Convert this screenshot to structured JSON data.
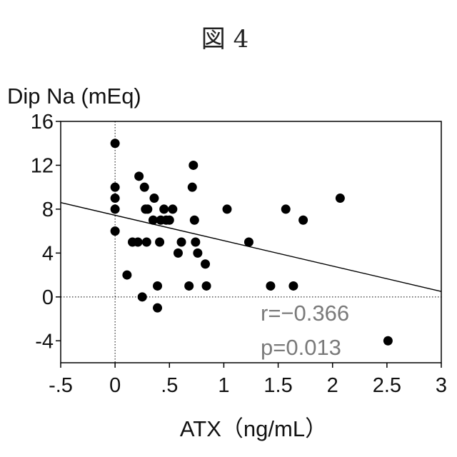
{
  "figure_label": "図 4",
  "chart_data": {
    "type": "scatter",
    "title": "",
    "ylabel": "Dip Na (mEq)",
    "xlabel": "ATX（ng/mL）",
    "xlim": [
      -0.5,
      3
    ],
    "ylim": [
      -6,
      16
    ],
    "x_ticks": [
      -0.5,
      0,
      0.5,
      1,
      1.5,
      2,
      2.5,
      3
    ],
    "x_tick_labels": [
      "-.5",
      "0",
      ".5",
      "1",
      "1.5",
      "2",
      "2.5",
      "3"
    ],
    "y_ticks": [
      -4,
      0,
      4,
      8,
      12,
      16
    ],
    "y_tick_labels": [
      "-4",
      "0",
      "4",
      "8",
      "12",
      "16"
    ],
    "reference_lines": {
      "x": 0,
      "y": 0,
      "style": "dotted"
    },
    "grid": false,
    "points": [
      {
        "x": 0.0,
        "y": 14
      },
      {
        "x": 0.0,
        "y": 10
      },
      {
        "x": 0.0,
        "y": 9
      },
      {
        "x": 0.0,
        "y": 8
      },
      {
        "x": 0.0,
        "y": 6
      },
      {
        "x": 0.11,
        "y": 2
      },
      {
        "x": 0.16,
        "y": 5
      },
      {
        "x": 0.21,
        "y": 5
      },
      {
        "x": 0.22,
        "y": 11
      },
      {
        "x": 0.25,
        "y": 0
      },
      {
        "x": 0.27,
        "y": 10
      },
      {
        "x": 0.28,
        "y": 8
      },
      {
        "x": 0.29,
        "y": 5
      },
      {
        "x": 0.3,
        "y": 8
      },
      {
        "x": 0.35,
        "y": 7
      },
      {
        "x": 0.36,
        "y": 9
      },
      {
        "x": 0.39,
        "y": 1
      },
      {
        "x": 0.39,
        "y": -1
      },
      {
        "x": 0.41,
        "y": 5
      },
      {
        "x": 0.42,
        "y": 7
      },
      {
        "x": 0.45,
        "y": 8
      },
      {
        "x": 0.47,
        "y": 7
      },
      {
        "x": 0.5,
        "y": 7
      },
      {
        "x": 0.53,
        "y": 8
      },
      {
        "x": 0.58,
        "y": 4
      },
      {
        "x": 0.61,
        "y": 5
      },
      {
        "x": 0.68,
        "y": 1
      },
      {
        "x": 0.71,
        "y": 10
      },
      {
        "x": 0.72,
        "y": 12
      },
      {
        "x": 0.73,
        "y": 7
      },
      {
        "x": 0.74,
        "y": 5
      },
      {
        "x": 0.76,
        "y": 4
      },
      {
        "x": 0.83,
        "y": 3
      },
      {
        "x": 0.84,
        "y": 1
      },
      {
        "x": 1.03,
        "y": 8
      },
      {
        "x": 1.23,
        "y": 5
      },
      {
        "x": 1.43,
        "y": 1
      },
      {
        "x": 1.57,
        "y": 8
      },
      {
        "x": 1.64,
        "y": 1
      },
      {
        "x": 1.73,
        "y": 7
      },
      {
        "x": 2.07,
        "y": 9
      },
      {
        "x": 2.51,
        "y": -4
      }
    ],
    "regression_line": {
      "x": [
        -0.5,
        3
      ],
      "y": [
        8.6,
        0.5
      ]
    },
    "annotations": [
      "r=−0.366",
      "p=0.013"
    ]
  }
}
